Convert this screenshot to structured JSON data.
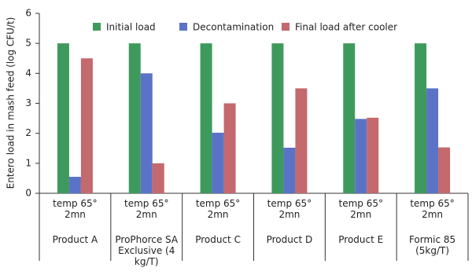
{
  "chart_data": {
    "type": "bar",
    "y_label": "Entero load in mash feed (log CFU/t)",
    "conditions": [
      "temp 65° 2mn",
      "temp 65° 2mn",
      "temp 65° 2mn",
      "temp 65° 2mn",
      "temp 65° 2mn",
      "temp 65° 2mn"
    ],
    "categories": [
      "Product A",
      "ProPhorce SA Exclusive (4 kg/T)",
      "Product C",
      "Product D",
      "Product E",
      "Formic 85 (5kg/T)"
    ],
    "series": [
      {
        "name": "Initial load",
        "color": "#3e9a5c",
        "values": [
          5,
          5,
          5,
          5,
          5,
          5
        ]
      },
      {
        "name": "Decontamination",
        "color": "#5b73c6",
        "values": [
          0.55,
          4.0,
          2.02,
          1.52,
          2.48,
          3.5
        ]
      },
      {
        "name": "Final load after cooler",
        "color": "#c4696d",
        "values": [
          4.5,
          1.0,
          3.0,
          3.5,
          2.52,
          1.53
        ]
      }
    ],
    "ylim": [
      0,
      6
    ],
    "yticks": [
      0,
      1,
      2,
      3,
      4,
      5,
      6
    ],
    "grid": false,
    "legend": "top"
  }
}
